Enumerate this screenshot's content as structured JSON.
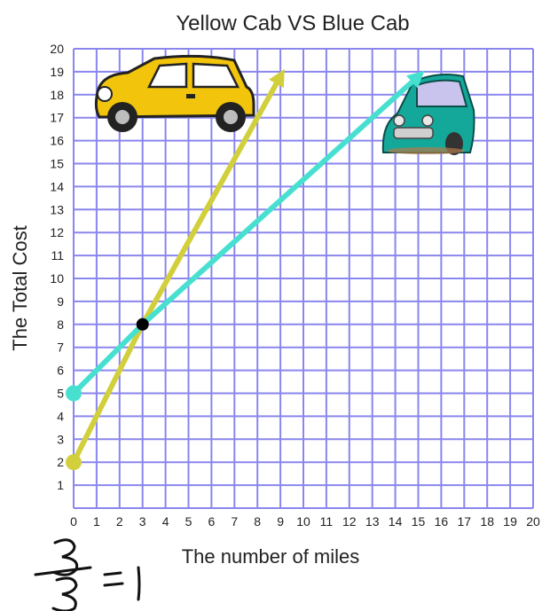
{
  "chart_data": {
    "type": "line",
    "title": "Yellow Cab VS Blue Cab",
    "xlabel": "The number of miles",
    "ylabel": "The Total Cost",
    "xlim": [
      0,
      20
    ],
    "ylim": [
      0,
      20
    ],
    "x_ticks": [
      "0",
      "1",
      "2",
      "3",
      "4",
      "5",
      "6",
      "7",
      "8",
      "9",
      "10",
      "11",
      "12",
      "13",
      "14",
      "15",
      "16",
      "17",
      "18",
      "19",
      "20"
    ],
    "y_ticks": [
      "1",
      "2",
      "3",
      "4",
      "5",
      "6",
      "7",
      "8",
      "9",
      "10",
      "11",
      "12",
      "13",
      "14",
      "15",
      "16",
      "17",
      "18",
      "19",
      "20"
    ],
    "grid": true,
    "grid_color": "#8a86ee",
    "series": [
      {
        "color": "#d2cf3c",
        "points": [
          [
            0,
            2
          ],
          [
            3,
            8
          ],
          [
            9,
            18.8
          ]
        ],
        "start_marker_color": "#d2cf3c"
      },
      {
        "color": "#47e0d0",
        "points": [
          [
            0,
            5
          ],
          [
            3,
            8
          ],
          [
            15,
            18.8
          ]
        ],
        "start_marker_color": "#47e0d0"
      }
    ],
    "intersection": {
      "x": 3,
      "y": 8,
      "color": "#000000"
    },
    "icons": [
      "yellow-cab-icon",
      "blue-cab-icon"
    ],
    "annotation": {
      "note": "handwritten fraction 3/3 = 1",
      "color": "#111111"
    }
  }
}
